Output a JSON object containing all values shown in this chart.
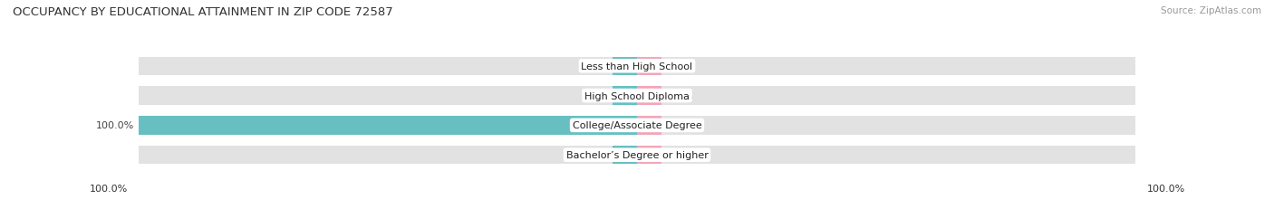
{
  "title": "OCCUPANCY BY EDUCATIONAL ATTAINMENT IN ZIP CODE 72587",
  "source": "Source: ZipAtlas.com",
  "categories": [
    "Less than High School",
    "High School Diploma",
    "College/Associate Degree",
    "Bachelor’s Degree or higher"
  ],
  "owner_values": [
    0.0,
    0.0,
    100.0,
    0.0
  ],
  "renter_values": [
    0.0,
    0.0,
    0.0,
    0.0
  ],
  "owner_color": "#5bbcbf",
  "renter_color": "#f4a0b5",
  "bar_bg_color": "#e2e2e2",
  "bar_bg_light": "#eeeeee",
  "min_bar_pct": 5.0,
  "title_fontsize": 9.5,
  "source_fontsize": 7.5,
  "value_fontsize": 8.0,
  "cat_fontsize": 8.0,
  "legend_fontsize": 8.0,
  "fig_bg_color": "#ffffff"
}
